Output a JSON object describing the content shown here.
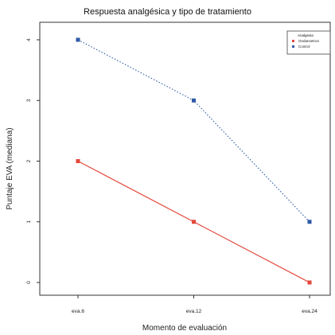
{
  "chart_data": {
    "type": "line",
    "title": "Respuesta analgésica y tipo de tratamiento",
    "xlabel": "Momento de evaluación",
    "ylabel": "Puntaje EVA (mediana)",
    "categories": [
      "eva.6",
      "eva.12",
      "eva.24"
    ],
    "ylim": [
      0,
      4
    ],
    "yticks": [
      "0",
      "1",
      "2",
      "3",
      "4"
    ],
    "grid": false,
    "legend_placement": "top-right",
    "legend_title": "Analgesia",
    "series": [
      {
        "name": "Ondansetron",
        "values": [
          2,
          1,
          0
        ],
        "color": "#e4473b",
        "line_style": "solid",
        "marker": "square"
      },
      {
        "name": "Control",
        "values": [
          4,
          3,
          1
        ],
        "color": "#2f5aa6",
        "line_style": "dotted",
        "marker": "square"
      }
    ]
  }
}
